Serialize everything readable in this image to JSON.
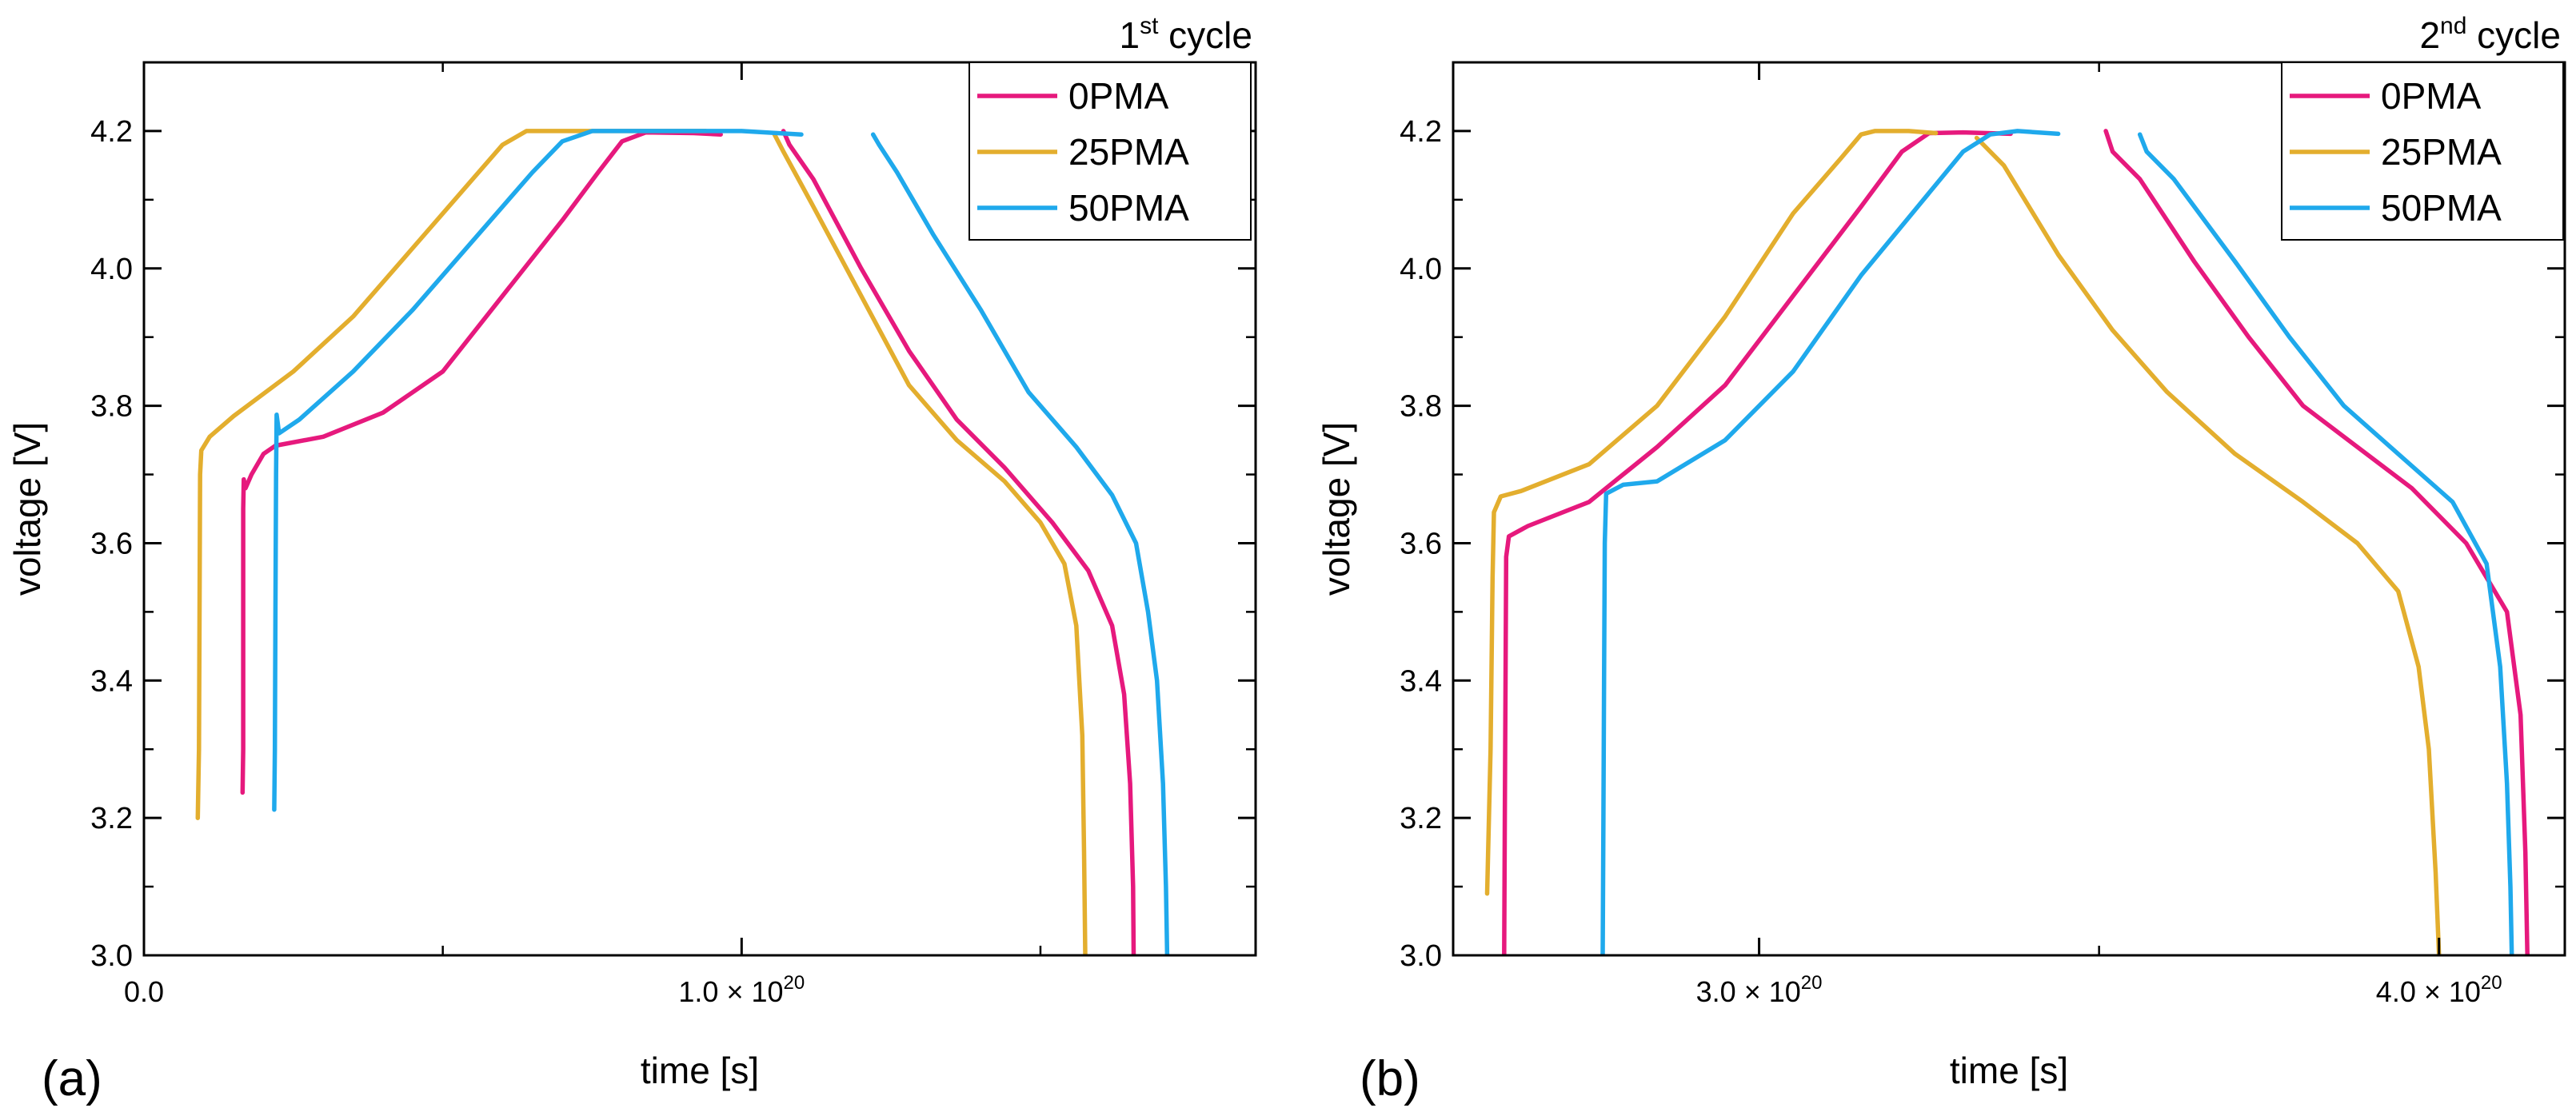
{
  "figure": {
    "panel_labels": [
      "(a)",
      "(b)"
    ]
  },
  "colors": {
    "0PMA": "#E6197D",
    "25PMA": "#E3AE2E",
    "50PMA": "#1FA9EC",
    "axis": "#000000"
  },
  "chart_data": [
    {
      "type": "line",
      "panel": "(a)",
      "title": "1st cycle",
      "title_main": "1",
      "title_sup": "st",
      "title_rest": " cycle",
      "xlabel": "time [s]",
      "ylabel": "voltage [V]",
      "xlim": [
        0,
        1.86
      ],
      "ylim": [
        3.0,
        4.3
      ],
      "x_unit": "1e20 s",
      "xticks": [
        {
          "value": 0.0,
          "label": "0.0",
          "sup": "",
          "tail": ""
        },
        {
          "value": 1.0,
          "label": "1.0 × 10",
          "sup": "20",
          "tail": ""
        }
      ],
      "yticks": [
        {
          "value": 3.0,
          "label": "3.0"
        },
        {
          "value": 3.2,
          "label": "3.2"
        },
        {
          "value": 3.4,
          "label": "3.4"
        },
        {
          "value": 3.6,
          "label": "3.6"
        },
        {
          "value": 3.8,
          "label": "3.8"
        },
        {
          "value": 4.0,
          "label": "4.0"
        },
        {
          "value": 4.2,
          "label": "4.2"
        }
      ],
      "legend": {
        "position": "top-right",
        "entries": [
          "0PMA",
          "25PMA",
          "50PMA"
        ]
      },
      "series": [
        {
          "name": "0PMA",
          "segments": [
            [
              [
                0.165,
                3.237
              ],
              [
                0.166,
                3.3
              ],
              [
                0.166,
                3.5
              ],
              [
                0.166,
                3.65
              ],
              [
                0.167,
                3.693
              ],
              [
                0.17,
                3.68
              ],
              [
                0.18,
                3.7
              ],
              [
                0.2,
                3.73
              ],
              [
                0.22,
                3.742
              ],
              [
                0.3,
                3.755
              ],
              [
                0.4,
                3.79
              ],
              [
                0.5,
                3.85
              ],
              [
                0.6,
                3.96
              ],
              [
                0.7,
                4.07
              ],
              [
                0.76,
                4.14
              ],
              [
                0.8,
                4.185
              ],
              [
                0.84,
                4.198
              ],
              [
                0.92,
                4.197
              ],
              [
                0.965,
                4.195
              ]
            ],
            [
              [
                1.07,
                4.2
              ],
              [
                1.08,
                4.18
              ],
              [
                1.12,
                4.13
              ],
              [
                1.2,
                4.0
              ],
              [
                1.28,
                3.88
              ],
              [
                1.36,
                3.78
              ],
              [
                1.44,
                3.71
              ],
              [
                1.52,
                3.63
              ],
              [
                1.58,
                3.56
              ],
              [
                1.62,
                3.48
              ],
              [
                1.64,
                3.38
              ],
              [
                1.65,
                3.25
              ],
              [
                1.655,
                3.1
              ],
              [
                1.656,
                3.0
              ]
            ]
          ]
        },
        {
          "name": "25PMA",
          "segments": [
            [
              [
                0.09,
                3.2
              ],
              [
                0.092,
                3.3
              ],
              [
                0.093,
                3.5
              ],
              [
                0.094,
                3.7
              ],
              [
                0.096,
                3.735
              ],
              [
                0.11,
                3.755
              ],
              [
                0.15,
                3.785
              ],
              [
                0.25,
                3.85
              ],
              [
                0.35,
                3.93
              ],
              [
                0.45,
                4.03
              ],
              [
                0.55,
                4.13
              ],
              [
                0.6,
                4.18
              ],
              [
                0.64,
                4.2
              ],
              [
                0.75,
                4.2
              ],
              [
                0.85,
                4.2
              ],
              [
                0.94,
                4.2
              ]
            ],
            [
              [
                1.055,
                4.195
              ],
              [
                1.07,
                4.17
              ],
              [
                1.12,
                4.09
              ],
              [
                1.2,
                3.96
              ],
              [
                1.28,
                3.83
              ],
              [
                1.36,
                3.75
              ],
              [
                1.44,
                3.69
              ],
              [
                1.5,
                3.63
              ],
              [
                1.54,
                3.57
              ],
              [
                1.56,
                3.48
              ],
              [
                1.57,
                3.32
              ],
              [
                1.573,
                3.15
              ],
              [
                1.575,
                3.0
              ]
            ]
          ]
        },
        {
          "name": "50PMA",
          "segments": [
            [
              [
                0.218,
                3.212
              ],
              [
                0.219,
                3.3
              ],
              [
                0.22,
                3.5
              ],
              [
                0.221,
                3.7
              ],
              [
                0.222,
                3.787
              ],
              [
                0.226,
                3.76
              ],
              [
                0.26,
                3.78
              ],
              [
                0.35,
                3.85
              ],
              [
                0.45,
                3.94
              ],
              [
                0.55,
                4.04
              ],
              [
                0.65,
                4.14
              ],
              [
                0.7,
                4.185
              ],
              [
                0.75,
                4.2
              ],
              [
                0.9,
                4.2
              ],
              [
                1.0,
                4.2
              ],
              [
                1.1,
                4.195
              ]
            ],
            [
              [
                1.22,
                4.195
              ],
              [
                1.23,
                4.18
              ],
              [
                1.26,
                4.14
              ],
              [
                1.32,
                4.05
              ],
              [
                1.4,
                3.94
              ],
              [
                1.48,
                3.82
              ],
              [
                1.56,
                3.74
              ],
              [
                1.62,
                3.67
              ],
              [
                1.66,
                3.6
              ],
              [
                1.68,
                3.5
              ],
              [
                1.695,
                3.4
              ],
              [
                1.705,
                3.25
              ],
              [
                1.71,
                3.1
              ],
              [
                1.712,
                3.0
              ]
            ]
          ]
        }
      ]
    },
    {
      "type": "line",
      "panel": "(b)",
      "title": "2nd cycle",
      "title_main": "2",
      "title_sup": "nd",
      "title_rest": " cycle",
      "xlabel": "time [s]",
      "ylabel": "voltage [V]",
      "xlim": [
        2.55,
        4.185
      ],
      "ylim": [
        3.0,
        4.3
      ],
      "x_unit": "1e20 s",
      "xticks": [
        {
          "value": 3.0,
          "label": "3.0 × 10",
          "sup": "20",
          "tail": ""
        },
        {
          "value": 4.0,
          "label": "4.0 × 10",
          "sup": "20",
          "tail": ""
        }
      ],
      "yticks": [
        {
          "value": 3.0,
          "label": "3.0"
        },
        {
          "value": 3.2,
          "label": "3.2"
        },
        {
          "value": 3.4,
          "label": "3.4"
        },
        {
          "value": 3.6,
          "label": "3.6"
        },
        {
          "value": 3.8,
          "label": "3.8"
        },
        {
          "value": 4.0,
          "label": "4.0"
        },
        {
          "value": 4.2,
          "label": "4.2"
        }
      ],
      "legend": {
        "position": "top-right",
        "entries": [
          "0PMA",
          "25PMA",
          "50PMA"
        ]
      },
      "series": [
        {
          "name": "0PMA",
          "segments": [
            [
              [
                2.625,
                3.0
              ],
              [
                2.626,
                3.2
              ],
              [
                2.627,
                3.4
              ],
              [
                2.628,
                3.58
              ],
              [
                2.632,
                3.61
              ],
              [
                2.66,
                3.625
              ],
              [
                2.75,
                3.66
              ],
              [
                2.85,
                3.74
              ],
              [
                2.95,
                3.83
              ],
              [
                3.05,
                3.96
              ],
              [
                3.15,
                4.09
              ],
              [
                3.21,
                4.17
              ],
              [
                3.25,
                4.197
              ],
              [
                3.3,
                4.198
              ],
              [
                3.37,
                4.196
              ]
            ],
            [
              [
                3.51,
                4.2
              ],
              [
                3.52,
                4.17
              ],
              [
                3.56,
                4.13
              ],
              [
                3.64,
                4.01
              ],
              [
                3.72,
                3.9
              ],
              [
                3.8,
                3.8
              ],
              [
                3.88,
                3.74
              ],
              [
                3.96,
                3.68
              ],
              [
                4.04,
                3.6
              ],
              [
                4.1,
                3.5
              ],
              [
                4.12,
                3.35
              ],
              [
                4.127,
                3.15
              ],
              [
                4.13,
                3.0
              ]
            ]
          ]
        },
        {
          "name": "25PMA",
          "segments": [
            [
              [
                2.6,
                3.09
              ],
              [
                2.605,
                3.3
              ],
              [
                2.608,
                3.55
              ],
              [
                2.61,
                3.645
              ],
              [
                2.62,
                3.668
              ],
              [
                2.65,
                3.676
              ],
              [
                2.75,
                3.715
              ],
              [
                2.85,
                3.8
              ],
              [
                2.95,
                3.93
              ],
              [
                3.05,
                4.08
              ],
              [
                3.12,
                4.16
              ],
              [
                3.15,
                4.195
              ],
              [
                3.17,
                4.2
              ],
              [
                3.22,
                4.2
              ],
              [
                3.26,
                4.197
              ]
            ],
            [
              [
                3.32,
                4.19
              ],
              [
                3.36,
                4.15
              ],
              [
                3.44,
                4.02
              ],
              [
                3.52,
                3.91
              ],
              [
                3.6,
                3.82
              ],
              [
                3.7,
                3.73
              ],
              [
                3.8,
                3.66
              ],
              [
                3.88,
                3.6
              ],
              [
                3.94,
                3.53
              ],
              [
                3.97,
                3.42
              ],
              [
                3.985,
                3.3
              ],
              [
                3.995,
                3.12
              ],
              [
                4.0,
                3.0
              ]
            ]
          ]
        },
        {
          "name": "50PMA",
          "segments": [
            [
              [
                2.77,
                3.0
              ],
              [
                2.771,
                3.2
              ],
              [
                2.772,
                3.4
              ],
              [
                2.773,
                3.6
              ],
              [
                2.775,
                3.672
              ],
              [
                2.8,
                3.685
              ],
              [
                2.85,
                3.69
              ],
              [
                2.95,
                3.75
              ],
              [
                3.05,
                3.85
              ],
              [
                3.15,
                3.99
              ],
              [
                3.25,
                4.11
              ],
              [
                3.3,
                4.17
              ],
              [
                3.34,
                4.195
              ],
              [
                3.38,
                4.2
              ],
              [
                3.44,
                4.196
              ]
            ],
            [
              [
                3.56,
                4.195
              ],
              [
                3.57,
                4.17
              ],
              [
                3.61,
                4.13
              ],
              [
                3.7,
                4.01
              ],
              [
                3.78,
                3.9
              ],
              [
                3.86,
                3.8
              ],
              [
                3.94,
                3.73
              ],
              [
                4.02,
                3.66
              ],
              [
                4.07,
                3.57
              ],
              [
                4.09,
                3.42
              ],
              [
                4.1,
                3.25
              ],
              [
                4.105,
                3.1
              ],
              [
                4.107,
                3.0
              ]
            ]
          ]
        }
      ]
    }
  ]
}
